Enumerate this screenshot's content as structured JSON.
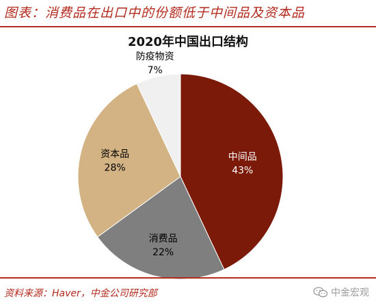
{
  "header": {
    "title": "图表：消费品在出口中的份额低于中间品及资本品"
  },
  "footer": {
    "source": "资料来源：Haver，中金公司研究部",
    "watermark_text": "中金宏观"
  },
  "colors": {
    "accent_red": "#b32a1e",
    "slice_intermediate": "#7b1a08",
    "slice_consumer": "#7f7f7f",
    "slice_capital": "#d3b283",
    "slice_epidemic": "#f0f0f0"
  },
  "chart_data": {
    "type": "pie",
    "title": "2020年中国出口结构",
    "slices": [
      {
        "label": "中间品",
        "value": 43,
        "value_label": "43%",
        "color": "#7b1a08",
        "label_color": "#ffffff"
      },
      {
        "label": "消费品",
        "value": 22,
        "value_label": "22%",
        "color": "#7f7f7f",
        "label_color": "#000000"
      },
      {
        "label": "资本品",
        "value": 28,
        "value_label": "28%",
        "color": "#d3b283",
        "label_color": "#000000"
      },
      {
        "label": "防疫物资",
        "value": 7,
        "value_label": "7%",
        "color": "#f0f0f0",
        "label_color": "#000000"
      }
    ],
    "start_angle_deg": 0,
    "direction": "clockwise",
    "legend": "none"
  }
}
